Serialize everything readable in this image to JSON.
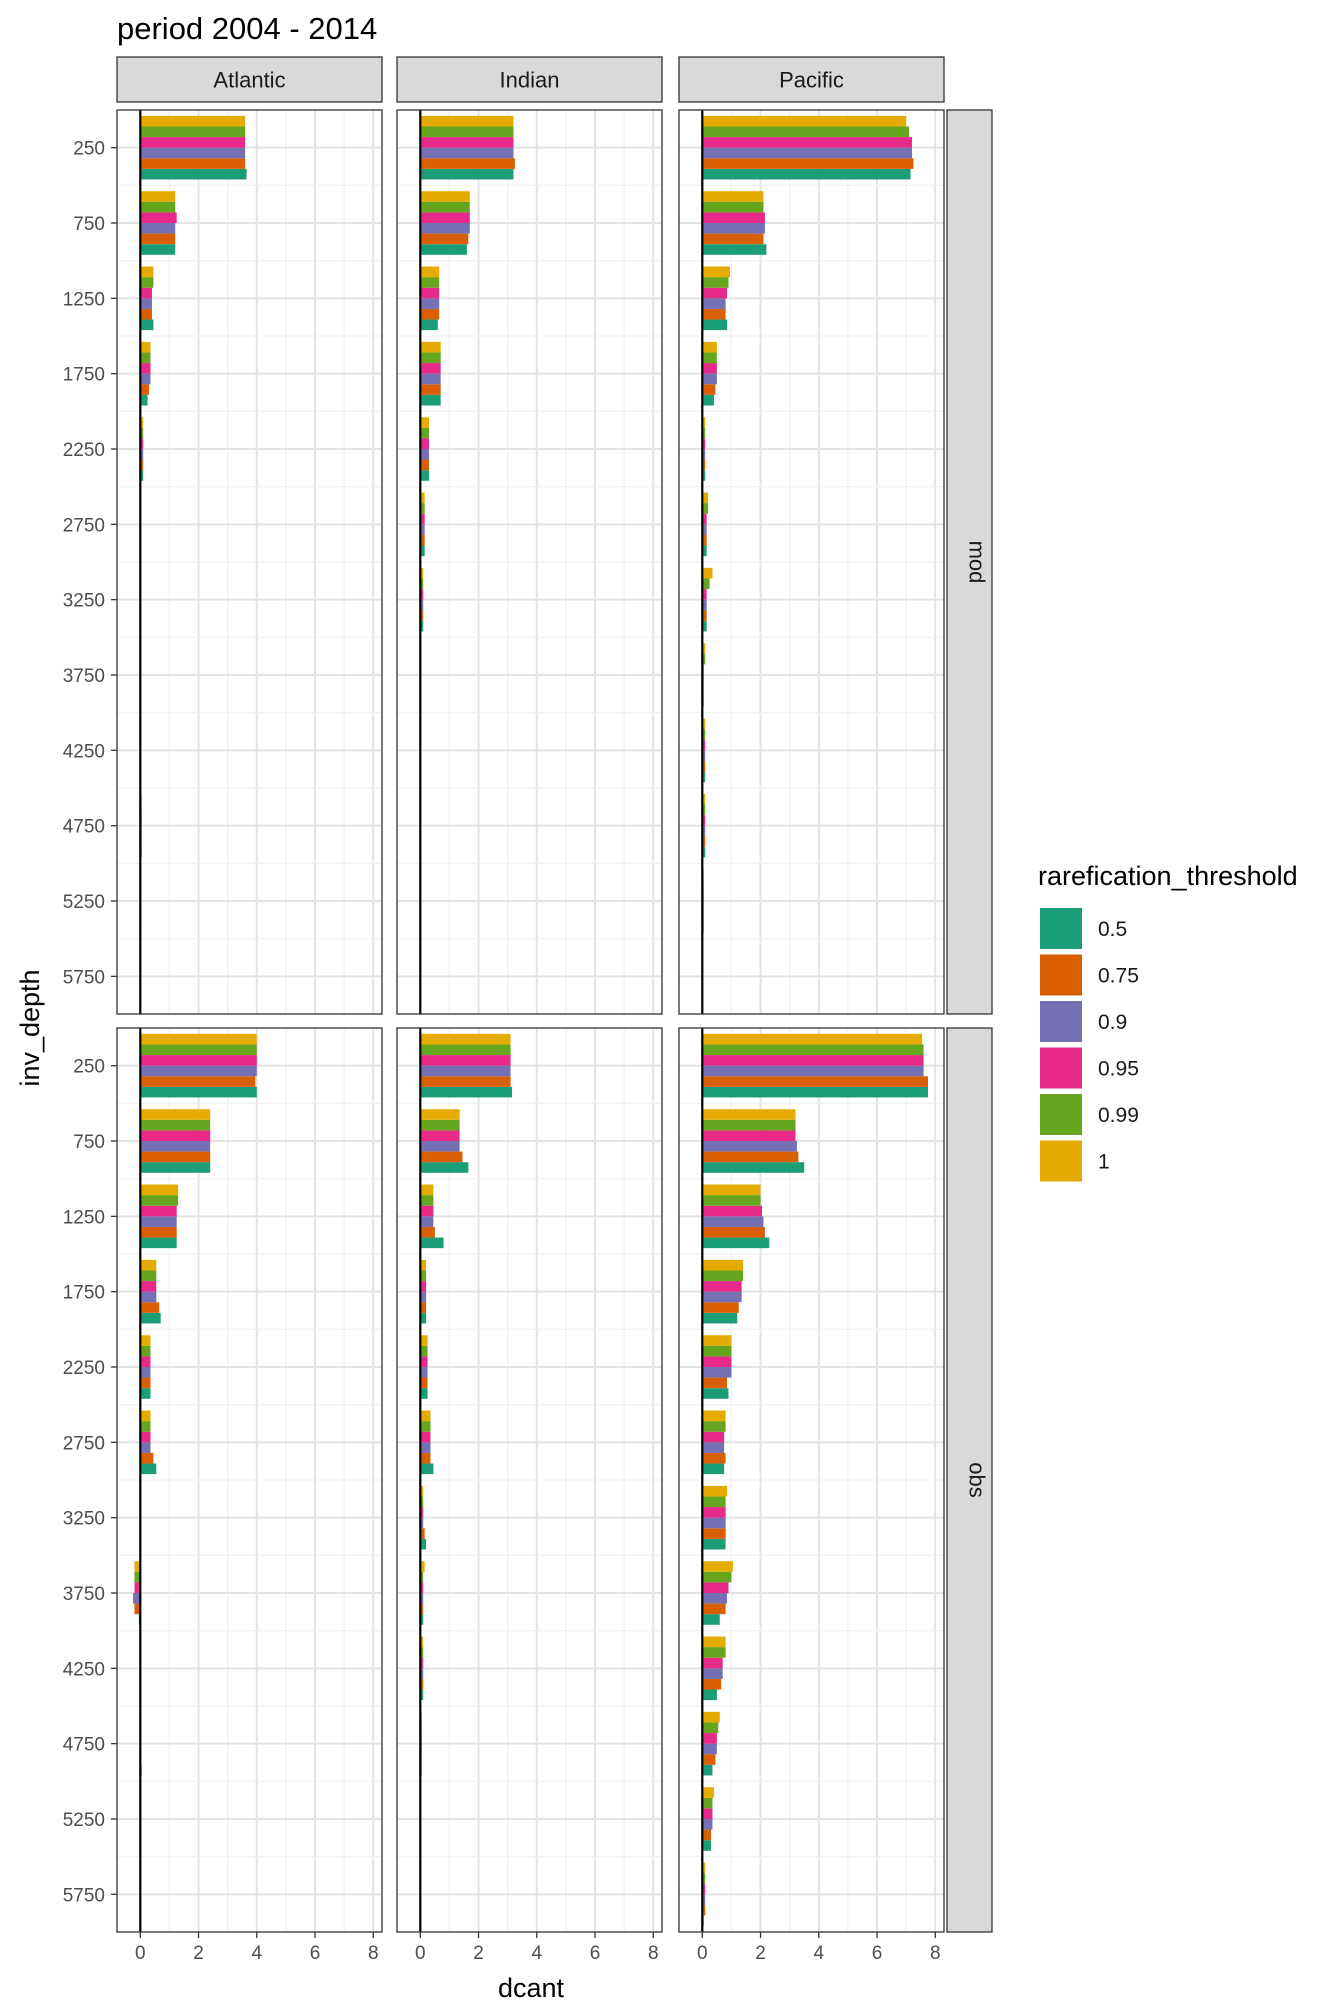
{
  "chart_data": {
    "type": "bar",
    "title": "period 2004 - 2014",
    "xlabel": "dcant",
    "ylabel": "inv_depth",
    "xlim": [
      -0.8,
      8.3
    ],
    "xticks": [
      0,
      2,
      4,
      6,
      8
    ],
    "depths": [
      250,
      750,
      1250,
      1750,
      2250,
      2750,
      3250,
      3750,
      4250,
      4750,
      5250,
      5750
    ],
    "columns": [
      "Atlantic",
      "Indian",
      "Pacific"
    ],
    "rows": [
      "mod",
      "obs"
    ],
    "grid": true,
    "legend": {
      "title": "rarefication_threshold",
      "position": "right",
      "items": [
        {
          "label": "0.5",
          "color": "#1B9E77"
        },
        {
          "label": "0.75",
          "color": "#D95F02"
        },
        {
          "label": "0.9",
          "color": "#7570B3"
        },
        {
          "label": "0.95",
          "color": "#E7298A"
        },
        {
          "label": "0.99",
          "color": "#66A61E"
        },
        {
          "label": "1",
          "color": "#E6AB02"
        }
      ]
    },
    "panels": [
      {
        "row": "mod",
        "col": "Atlantic",
        "values": [
          [
            3.65,
            3.6,
            3.6,
            3.6,
            3.6,
            3.6
          ],
          [
            1.2,
            1.2,
            1.2,
            1.25,
            1.2,
            1.2
          ],
          [
            0.45,
            0.4,
            0.4,
            0.4,
            0.45,
            0.45
          ],
          [
            0.25,
            0.3,
            0.35,
            0.35,
            0.35,
            0.35
          ],
          [
            0.1,
            0.1,
            0.1,
            0.1,
            0.1,
            0.1
          ],
          [
            0.02,
            0.02,
            0.02,
            0.02,
            0.02,
            0.02
          ],
          [
            0.01,
            0.01,
            0.01,
            0.01,
            0.01,
            0.01
          ],
          [
            0,
            0,
            0,
            0,
            0,
            0
          ],
          [
            0.03,
            0.03,
            0.03,
            0.03,
            0.03,
            0.03
          ],
          [
            0.05,
            0.05,
            0.05,
            0.05,
            0.05,
            0.05
          ],
          [
            0.04,
            0.04,
            0.04,
            0.04,
            0.04,
            0.04
          ],
          [
            0,
            0,
            0,
            0,
            0,
            0
          ]
        ]
      },
      {
        "row": "mod",
        "col": "Indian",
        "values": [
          [
            3.2,
            3.25,
            3.2,
            3.2,
            3.2,
            3.2
          ],
          [
            1.6,
            1.65,
            1.7,
            1.7,
            1.7,
            1.7
          ],
          [
            0.6,
            0.65,
            0.65,
            0.65,
            0.65,
            0.65
          ],
          [
            0.7,
            0.7,
            0.7,
            0.7,
            0.7,
            0.7
          ],
          [
            0.3,
            0.3,
            0.3,
            0.3,
            0.3,
            0.3
          ],
          [
            0.15,
            0.15,
            0.15,
            0.15,
            0.15,
            0.15
          ],
          [
            0.1,
            0.1,
            0.1,
            0.1,
            0.1,
            0.1
          ],
          [
            0.03,
            0.03,
            0.03,
            0.03,
            0.03,
            0.03
          ],
          [
            0.02,
            0.02,
            0.02,
            0.02,
            0.02,
            0.02
          ],
          [
            0.02,
            0.02,
            0.02,
            0.02,
            0.02,
            0.02
          ],
          [
            0,
            0,
            0,
            0,
            0,
            0
          ],
          [
            0,
            0,
            0,
            0,
            0,
            0
          ]
        ]
      },
      {
        "row": "mod",
        "col": "Pacific",
        "values": [
          [
            7.15,
            7.25,
            7.2,
            7.2,
            7.1,
            7.0
          ],
          [
            2.2,
            2.1,
            2.15,
            2.15,
            2.1,
            2.1
          ],
          [
            0.85,
            0.8,
            0.8,
            0.85,
            0.9,
            0.95
          ],
          [
            0.4,
            0.45,
            0.5,
            0.5,
            0.5,
            0.5
          ],
          [
            0.1,
            0.1,
            0.1,
            0.1,
            0.1,
            0.1
          ],
          [
            0.15,
            0.15,
            0.15,
            0.15,
            0.2,
            0.2
          ],
          [
            0.15,
            0.15,
            0.15,
            0.15,
            0.25,
            0.35
          ],
          [
            0.05,
            0.05,
            0.05,
            0.05,
            0.1,
            0.1
          ],
          [
            0.1,
            0.1,
            0.1,
            0.1,
            0.1,
            0.1
          ],
          [
            0.1,
            0.1,
            0.1,
            0.1,
            0.1,
            0.1
          ],
          [
            0.05,
            0.05,
            0.05,
            0.05,
            0.05,
            0.05
          ],
          [
            0,
            0,
            0,
            0,
            0,
            0
          ]
        ]
      },
      {
        "row": "obs",
        "col": "Atlantic",
        "values": [
          [
            4.0,
            3.95,
            4.0,
            4.0,
            4.0,
            4.0
          ],
          [
            2.4,
            2.4,
            2.4,
            2.4,
            2.4,
            2.4
          ],
          [
            1.25,
            1.25,
            1.25,
            1.25,
            1.3,
            1.3
          ],
          [
            0.7,
            0.65,
            0.55,
            0.55,
            0.55,
            0.55
          ],
          [
            0.35,
            0.35,
            0.35,
            0.35,
            0.35,
            0.35
          ],
          [
            0.55,
            0.45,
            0.35,
            0.35,
            0.35,
            0.35
          ],
          [
            0.03,
            0.03,
            0.03,
            0.03,
            0.03,
            0.03
          ],
          [
            -0.05,
            -0.2,
            -0.25,
            -0.2,
            -0.2,
            -0.2
          ],
          [
            0.03,
            0.03,
            0.03,
            0.03,
            0.03,
            0.03
          ],
          [
            0.05,
            0.03,
            0.03,
            0.03,
            0.03,
            0.03
          ],
          [
            0.03,
            0.03,
            0.03,
            0.03,
            0.03,
            0.03
          ],
          [
            0,
            0,
            0,
            0,
            0,
            0
          ]
        ]
      },
      {
        "row": "obs",
        "col": "Indian",
        "values": [
          [
            3.15,
            3.1,
            3.1,
            3.1,
            3.1,
            3.1
          ],
          [
            1.65,
            1.45,
            1.35,
            1.35,
            1.35,
            1.35
          ],
          [
            0.8,
            0.5,
            0.45,
            0.45,
            0.45,
            0.45
          ],
          [
            0.2,
            0.2,
            0.2,
            0.2,
            0.2,
            0.2
          ],
          [
            0.25,
            0.25,
            0.25,
            0.25,
            0.25,
            0.25
          ],
          [
            0.45,
            0.35,
            0.35,
            0.35,
            0.35,
            0.35
          ],
          [
            0.2,
            0.15,
            0.1,
            0.1,
            0.1,
            0.1
          ],
          [
            0.1,
            0.1,
            0.1,
            0.1,
            0.1,
            0.15
          ],
          [
            0.1,
            0.1,
            0.1,
            0.1,
            0.1,
            0.1
          ],
          [
            0.05,
            0.05,
            0.05,
            0.05,
            0.05,
            0.05
          ],
          [
            0.02,
            0.02,
            0.02,
            0.02,
            0.02,
            0.02
          ],
          [
            0,
            0,
            0,
            0,
            0,
            0
          ]
        ]
      },
      {
        "row": "obs",
        "col": "Pacific",
        "values": [
          [
            7.75,
            7.75,
            7.6,
            7.6,
            7.6,
            7.55
          ],
          [
            3.5,
            3.3,
            3.25,
            3.2,
            3.2,
            3.2
          ],
          [
            2.3,
            2.15,
            2.1,
            2.05,
            2.0,
            2.0
          ],
          [
            1.2,
            1.25,
            1.35,
            1.35,
            1.4,
            1.4
          ],
          [
            0.9,
            0.85,
            1.0,
            1.0,
            1.0,
            1.0
          ],
          [
            0.75,
            0.8,
            0.75,
            0.75,
            0.8,
            0.8
          ],
          [
            0.8,
            0.8,
            0.8,
            0.8,
            0.8,
            0.85
          ],
          [
            0.6,
            0.8,
            0.85,
            0.9,
            1.0,
            1.05
          ],
          [
            0.5,
            0.65,
            0.7,
            0.7,
            0.8,
            0.8
          ],
          [
            0.35,
            0.45,
            0.5,
            0.5,
            0.55,
            0.6
          ],
          [
            0.3,
            0.3,
            0.35,
            0.35,
            0.35,
            0.4
          ],
          [
            0.05,
            0.1,
            0.1,
            0.1,
            0.1,
            0.1
          ]
        ]
      }
    ]
  }
}
